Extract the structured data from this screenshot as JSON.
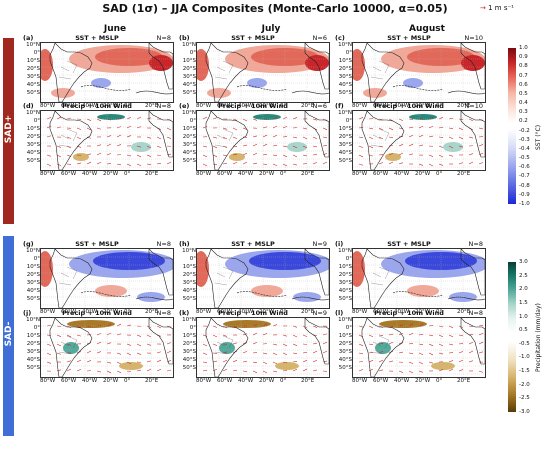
{
  "title": "SAD (1σ) – JJA Composites (Monte-Carlo 10000, α=0.05)",
  "reference_arrow": {
    "label": "1 m s⁻¹",
    "color": "#d22222"
  },
  "columns": [
    "June",
    "July",
    "August"
  ],
  "rows": [
    {
      "label": "SAD+",
      "color": "#a0281e"
    },
    {
      "label": "SAD-",
      "color": "#3f6fd6"
    }
  ],
  "panels": [
    {
      "label": "(a)",
      "title": "SST + MSLP",
      "n": "N=8"
    },
    {
      "label": "(b)",
      "title": "SST + MSLP",
      "n": "N=6"
    },
    {
      "label": "(c)",
      "title": "SST + MSLP",
      "n": "N=10"
    },
    {
      "label": "(d)",
      "title": "Precip + 10m Wind",
      "n": "N=8"
    },
    {
      "label": "(e)",
      "title": "Precip + 10m Wind",
      "n": "N=6"
    },
    {
      "label": "(f)",
      "title": "Precip + 10m Wind",
      "n": "N=10"
    },
    {
      "label": "(g)",
      "title": "SST + MSLP",
      "n": "N=8"
    },
    {
      "label": "(h)",
      "title": "SST + MSLP",
      "n": "N=9"
    },
    {
      "label": "(i)",
      "title": "SST + MSLP",
      "n": "N=8"
    },
    {
      "label": "(j)",
      "title": "Precip + 10m Wind",
      "n": "N=8"
    },
    {
      "label": "(k)",
      "title": "Precip + 10m Wind",
      "n": "N=9"
    },
    {
      "label": "(l)",
      "title": "Precip + 10m Wind",
      "n": "N=8"
    }
  ],
  "lat_labels": [
    "10°N",
    "0°",
    "10°S",
    "20°S",
    "30°S",
    "40°S",
    "50°S"
  ],
  "lon_labels": [
    "80°W",
    "60°W",
    "40°W",
    "20°W",
    "0°",
    "20°E"
  ],
  "colorbars": [
    {
      "title": "SST (°C)",
      "ticks": [
        "1.0",
        "0.9",
        "0.8",
        "0.7",
        "0.6",
        "0.5",
        "0.4",
        "0.3",
        "0.2",
        "-0.2",
        "-0.3",
        "-0.4",
        "-0.5",
        "-0.6",
        "-0.7",
        "-0.8",
        "-0.9",
        "-1.0"
      ]
    },
    {
      "title": "Precipitation (mm/day)",
      "ticks": [
        "3.0",
        "2.5",
        "2.0",
        "1.5",
        "1.0",
        "0.5",
        "-0.5",
        "-1.0",
        "-1.5",
        "-2.0",
        "-2.5",
        "-3.0"
      ]
    }
  ]
}
